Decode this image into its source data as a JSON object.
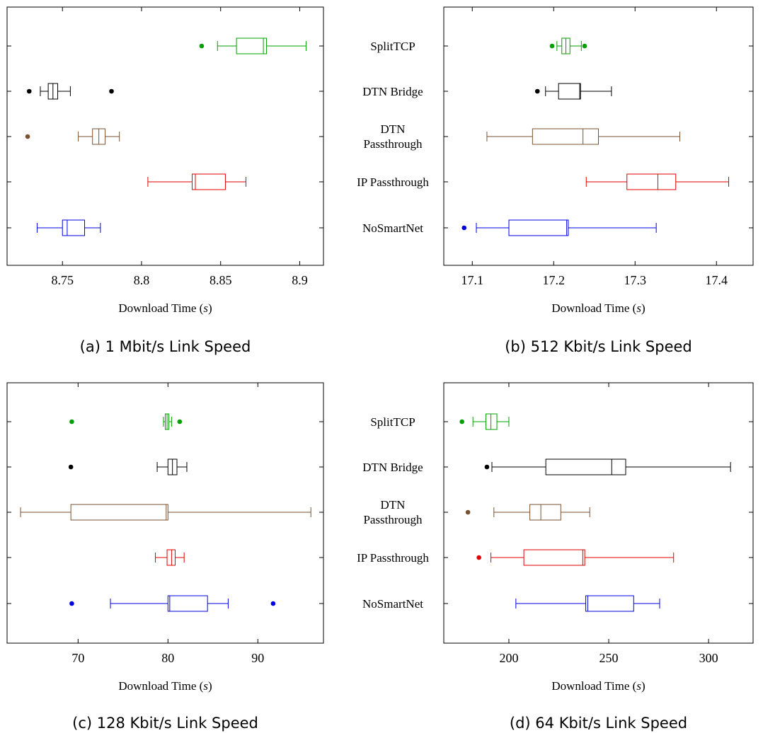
{
  "figure": {
    "categories": [
      "SplitTCP",
      "DTN Bridge",
      "DTN Passthrough",
      "IP Passthrough",
      "NoSmartNet"
    ],
    "category_label_lines": [
      [
        "SplitTCP"
      ],
      [
        "DTN Bridge"
      ],
      [
        "DTN",
        "Passthrough"
      ],
      [
        "IP Passthrough"
      ],
      [
        "NoSmartNet"
      ]
    ],
    "series_colors": {
      "SplitTCP": "#00a000",
      "DTN Bridge": "#000000",
      "DTN Passthrough": "#7a5230",
      "IP Passthrough": "#e00000",
      "NoSmartNet": "#0000e0"
    }
  },
  "chart_data": [
    {
      "type": "boxplot",
      "caption": "(a) 1 Mbit/s Link Speed",
      "xlabel": "Download Time (s)",
      "xlim": [
        8.715,
        8.915
      ],
      "xticks": [
        8.75,
        8.8,
        8.85,
        8.9
      ],
      "xtick_labels": [
        "8.75",
        "8.8",
        "8.85",
        "8.9"
      ],
      "boxes": [
        {
          "name": "SplitTCP",
          "whisker_low": 8.848,
          "q1": 8.86,
          "median": 8.877,
          "q3": 8.879,
          "whisker_high": 8.904,
          "outliers": [
            8.838
          ]
        },
        {
          "name": "DTN Bridge",
          "whisker_low": 8.736,
          "q1": 8.741,
          "median": 8.744,
          "q3": 8.747,
          "whisker_high": 8.755,
          "outliers": [
            8.729,
            8.781
          ]
        },
        {
          "name": "DTN Passthrough",
          "whisker_low": 8.76,
          "q1": 8.769,
          "median": 8.773,
          "q3": 8.777,
          "whisker_high": 8.786,
          "outliers": [
            8.728
          ]
        },
        {
          "name": "IP Passthrough",
          "whisker_low": 8.804,
          "q1": 8.832,
          "median": 8.834,
          "q3": 8.853,
          "whisker_high": 8.866,
          "outliers": []
        },
        {
          "name": "NoSmartNet",
          "whisker_low": 8.734,
          "q1": 8.75,
          "median": 8.753,
          "q3": 8.764,
          "whisker_high": 8.774,
          "outliers": []
        }
      ]
    },
    {
      "type": "boxplot",
      "caption": "(b) 512 Kbit/s Link Speed",
      "xlabel": "Download Time (s)",
      "xlim": [
        17.065,
        17.445
      ],
      "xticks": [
        17.1,
        17.2,
        17.3,
        17.4
      ],
      "xtick_labels": [
        "17.1",
        "17.2",
        "17.3",
        "17.4"
      ],
      "boxes": [
        {
          "name": "SplitTCP",
          "whisker_low": 17.204,
          "q1": 17.21,
          "median": 17.215,
          "q3": 17.22,
          "whisker_high": 17.234,
          "outliers": [
            17.198,
            17.238
          ]
        },
        {
          "name": "DTN Bridge",
          "whisker_low": 17.19,
          "q1": 17.206,
          "median": 17.232,
          "q3": 17.233,
          "whisker_high": 17.271,
          "outliers": [
            17.18
          ]
        },
        {
          "name": "DTN Passthrough",
          "whisker_low": 17.118,
          "q1": 17.174,
          "median": 17.236,
          "q3": 17.255,
          "whisker_high": 17.355,
          "outliers": []
        },
        {
          "name": "IP Passthrough",
          "whisker_low": 17.24,
          "q1": 17.29,
          "median": 17.328,
          "q3": 17.35,
          "whisker_high": 17.415,
          "outliers": []
        },
        {
          "name": "NoSmartNet",
          "whisker_low": 17.105,
          "q1": 17.145,
          "median": 17.216,
          "q3": 17.218,
          "whisker_high": 17.326,
          "outliers": [
            17.09
          ]
        }
      ]
    },
    {
      "type": "boxplot",
      "caption": "(c) 128 Kbit/s Link Speed",
      "xlabel": "Download Time (s)",
      "xlim": [
        62.1,
        97.3
      ],
      "xticks": [
        70,
        80,
        90
      ],
      "xtick_labels": [
        "70",
        "80",
        "90"
      ],
      "boxes": [
        {
          "name": "SplitTCP",
          "whisker_low": 79.5,
          "q1": 79.7,
          "median": 79.9,
          "q3": 80.1,
          "whisker_high": 80.4,
          "outliers": [
            69.3,
            81.3
          ]
        },
        {
          "name": "DTN Bridge",
          "whisker_low": 78.8,
          "q1": 80.0,
          "median": 80.5,
          "q3": 81.0,
          "whisker_high": 82.1,
          "outliers": [
            69.2
          ]
        },
        {
          "name": "DTN Passthrough",
          "whisker_low": 63.6,
          "q1": 69.2,
          "median": 79.8,
          "q3": 80.0,
          "whisker_high": 95.9,
          "outliers": []
        },
        {
          "name": "IP Passthrough",
          "whisker_low": 78.6,
          "q1": 79.9,
          "median": 80.4,
          "q3": 80.8,
          "whisker_high": 81.8,
          "outliers": []
        },
        {
          "name": "NoSmartNet",
          "whisker_low": 73.6,
          "q1": 80.0,
          "median": 80.2,
          "q3": 84.4,
          "whisker_high": 86.7,
          "outliers": [
            69.3,
            91.7
          ]
        }
      ]
    },
    {
      "type": "boxplot",
      "caption": "(d) 64 Kbit/s Link Speed",
      "xlabel": "Download Time (s)",
      "xlim": [
        167.4,
        322.3
      ],
      "xticks": [
        200,
        250,
        300
      ],
      "xtick_labels": [
        "200",
        "250",
        "300"
      ],
      "boxes": [
        {
          "name": "SplitTCP",
          "whisker_low": 182,
          "q1": 188.5,
          "median": 191,
          "q3": 194,
          "whisker_high": 200,
          "outliers": [
            176.5
          ]
        },
        {
          "name": "DTN Bridge",
          "whisker_low": 191.5,
          "q1": 218.5,
          "median": 251.5,
          "q3": 258.5,
          "whisker_high": 311,
          "outliers": [
            189
          ]
        },
        {
          "name": "DTN Passthrough",
          "whisker_low": 192.5,
          "q1": 210.5,
          "median": 216,
          "q3": 226,
          "whisker_high": 240.5,
          "outliers": [
            179.5
          ]
        },
        {
          "name": "IP Passthrough",
          "whisker_low": 191,
          "q1": 207.5,
          "median": 237,
          "q3": 238,
          "whisker_high": 282.5,
          "outliers": [
            185
          ]
        },
        {
          "name": "NoSmartNet",
          "whisker_low": 203.5,
          "q1": 238.5,
          "median": 239.5,
          "q3": 262.5,
          "whisker_high": 275.5,
          "outliers": []
        }
      ]
    }
  ]
}
